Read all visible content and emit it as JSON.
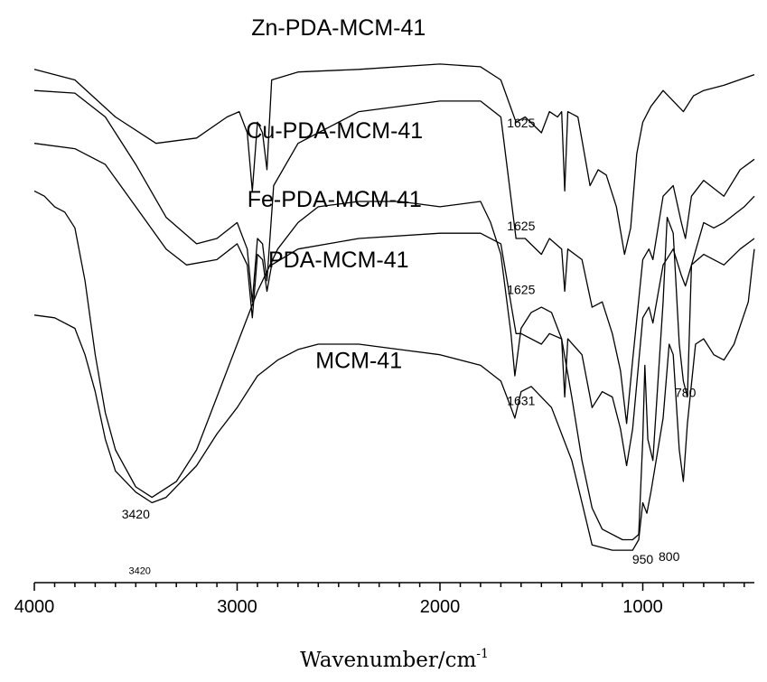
{
  "chart_data": {
    "type": "line",
    "title": "",
    "xlabel": "Wavenumber/cm",
    "xlabel_sup": "-1",
    "ylabel": "",
    "xlim": [
      4000,
      450
    ],
    "x_reversed": true,
    "x_ticks": [
      4000,
      3000,
      2000,
      1000
    ],
    "grid": false,
    "series": [
      {
        "name": "Zn-PDA-MCM-41",
        "points": [
          [
            4000,
            0.92
          ],
          [
            3800,
            0.9
          ],
          [
            3600,
            0.83
          ],
          [
            3400,
            0.78
          ],
          [
            3200,
            0.79
          ],
          [
            3050,
            0.83
          ],
          [
            2990,
            0.84
          ],
          [
            2950,
            0.8
          ],
          [
            2925,
            0.69
          ],
          [
            2900,
            0.82
          ],
          [
            2875,
            0.8
          ],
          [
            2853,
            0.73
          ],
          [
            2830,
            0.9
          ],
          [
            2700,
            0.915
          ],
          [
            2400,
            0.92
          ],
          [
            2000,
            0.93
          ],
          [
            1800,
            0.925
          ],
          [
            1700,
            0.9
          ],
          [
            1625,
            0.82
          ],
          [
            1580,
            0.83
          ],
          [
            1500,
            0.8
          ],
          [
            1460,
            0.84
          ],
          [
            1420,
            0.83
          ],
          [
            1400,
            0.84
          ],
          [
            1385,
            0.69
          ],
          [
            1370,
            0.84
          ],
          [
            1320,
            0.83
          ],
          [
            1260,
            0.7
          ],
          [
            1220,
            0.73
          ],
          [
            1180,
            0.72
          ],
          [
            1130,
            0.66
          ],
          [
            1090,
            0.57
          ],
          [
            1060,
            0.62
          ],
          [
            1030,
            0.76
          ],
          [
            1000,
            0.82
          ],
          [
            960,
            0.85
          ],
          [
            900,
            0.88
          ],
          [
            800,
            0.84
          ],
          [
            750,
            0.87
          ],
          [
            700,
            0.88
          ],
          [
            600,
            0.89
          ],
          [
            450,
            0.91
          ]
        ]
      },
      {
        "name": "Cu-PDA-MCM-41",
        "points": [
          [
            4000,
            0.88
          ],
          [
            3800,
            0.875
          ],
          [
            3650,
            0.83
          ],
          [
            3500,
            0.74
          ],
          [
            3350,
            0.64
          ],
          [
            3200,
            0.59
          ],
          [
            3100,
            0.6
          ],
          [
            3000,
            0.63
          ],
          [
            2950,
            0.58
          ],
          [
            2925,
            0.48
          ],
          [
            2900,
            0.6
          ],
          [
            2875,
            0.59
          ],
          [
            2853,
            0.52
          ],
          [
            2820,
            0.7
          ],
          [
            2700,
            0.78
          ],
          [
            2400,
            0.84
          ],
          [
            2000,
            0.86
          ],
          [
            1800,
            0.86
          ],
          [
            1700,
            0.83
          ],
          [
            1625,
            0.6
          ],
          [
            1580,
            0.6
          ],
          [
            1500,
            0.57
          ],
          [
            1460,
            0.6
          ],
          [
            1400,
            0.58
          ],
          [
            1385,
            0.5
          ],
          [
            1370,
            0.58
          ],
          [
            1300,
            0.56
          ],
          [
            1250,
            0.47
          ],
          [
            1200,
            0.48
          ],
          [
            1150,
            0.42
          ],
          [
            1110,
            0.35
          ],
          [
            1080,
            0.25
          ],
          [
            1050,
            0.37
          ],
          [
            1000,
            0.56
          ],
          [
            970,
            0.58
          ],
          [
            950,
            0.56
          ],
          [
            900,
            0.68
          ],
          [
            850,
            0.7
          ],
          [
            810,
            0.63
          ],
          [
            790,
            0.6
          ],
          [
            760,
            0.68
          ],
          [
            700,
            0.71
          ],
          [
            600,
            0.68
          ],
          [
            520,
            0.73
          ],
          [
            450,
            0.75
          ]
        ]
      },
      {
        "name": "Fe-PDA-MCM-41",
        "points": [
          [
            4000,
            0.78
          ],
          [
            3800,
            0.77
          ],
          [
            3650,
            0.74
          ],
          [
            3500,
            0.66
          ],
          [
            3350,
            0.58
          ],
          [
            3250,
            0.55
          ],
          [
            3100,
            0.56
          ],
          [
            3000,
            0.59
          ],
          [
            2950,
            0.55
          ],
          [
            2925,
            0.45
          ],
          [
            2900,
            0.57
          ],
          [
            2875,
            0.56
          ],
          [
            2853,
            0.5
          ],
          [
            2830,
            0.55
          ],
          [
            2700,
            0.58
          ],
          [
            2400,
            0.6
          ],
          [
            2000,
            0.61
          ],
          [
            1800,
            0.61
          ],
          [
            1700,
            0.59
          ],
          [
            1625,
            0.42
          ],
          [
            1600,
            0.42
          ],
          [
            1500,
            0.4
          ],
          [
            1460,
            0.42
          ],
          [
            1400,
            0.41
          ],
          [
            1385,
            0.3
          ],
          [
            1370,
            0.41
          ],
          [
            1300,
            0.38
          ],
          [
            1250,
            0.28
          ],
          [
            1200,
            0.31
          ],
          [
            1150,
            0.3
          ],
          [
            1110,
            0.24
          ],
          [
            1080,
            0.17
          ],
          [
            1050,
            0.24
          ],
          [
            1000,
            0.45
          ],
          [
            970,
            0.47
          ],
          [
            950,
            0.44
          ],
          [
            900,
            0.55
          ],
          [
            850,
            0.58
          ],
          [
            810,
            0.53
          ],
          [
            790,
            0.51
          ],
          [
            760,
            0.55
          ],
          [
            700,
            0.57
          ],
          [
            600,
            0.55
          ],
          [
            520,
            0.58
          ],
          [
            450,
            0.6
          ]
        ]
      },
      {
        "name": "PDA-MCM-41",
        "points": [
          [
            4000,
            0.69
          ],
          [
            3950,
            0.68
          ],
          [
            3900,
            0.66
          ],
          [
            3850,
            0.65
          ],
          [
            3800,
            0.62
          ],
          [
            3750,
            0.52
          ],
          [
            3700,
            0.38
          ],
          [
            3650,
            0.27
          ],
          [
            3600,
            0.2
          ],
          [
            3500,
            0.13
          ],
          [
            3420,
            0.11
          ],
          [
            3300,
            0.14
          ],
          [
            3200,
            0.2
          ],
          [
            3100,
            0.3
          ],
          [
            3000,
            0.4
          ],
          [
            2900,
            0.5
          ],
          [
            2800,
            0.58
          ],
          [
            2700,
            0.63
          ],
          [
            2600,
            0.66
          ],
          [
            2400,
            0.67
          ],
          [
            2200,
            0.67
          ],
          [
            2000,
            0.66
          ],
          [
            1800,
            0.67
          ],
          [
            1750,
            0.63
          ],
          [
            1700,
            0.57
          ],
          [
            1650,
            0.42
          ],
          [
            1631,
            0.34
          ],
          [
            1600,
            0.43
          ],
          [
            1550,
            0.46
          ],
          [
            1500,
            0.47
          ],
          [
            1450,
            0.46
          ],
          [
            1400,
            0.41
          ],
          [
            1350,
            0.3
          ],
          [
            1300,
            0.18
          ],
          [
            1250,
            0.09
          ],
          [
            1200,
            0.05
          ],
          [
            1100,
            0.03
          ],
          [
            1050,
            0.03
          ],
          [
            1020,
            0.04
          ],
          [
            1000,
            0.22
          ],
          [
            990,
            0.36
          ],
          [
            975,
            0.22
          ],
          [
            950,
            0.18
          ],
          [
            900,
            0.48
          ],
          [
            880,
            0.64
          ],
          [
            850,
            0.61
          ],
          [
            820,
            0.4
          ],
          [
            800,
            0.33
          ],
          [
            780,
            0.3
          ],
          [
            760,
            0.55
          ],
          [
            700,
            0.63
          ],
          [
            650,
            0.62
          ],
          [
            600,
            0.63
          ],
          [
            500,
            0.66
          ],
          [
            450,
            0.68
          ]
        ]
      },
      {
        "name": "MCM-41",
        "points": [
          [
            4000,
            0.455
          ],
          [
            3900,
            0.45
          ],
          [
            3800,
            0.43
          ],
          [
            3750,
            0.38
          ],
          [
            3700,
            0.31
          ],
          [
            3650,
            0.22
          ],
          [
            3600,
            0.16
          ],
          [
            3500,
            0.12
          ],
          [
            3420,
            0.1
          ],
          [
            3350,
            0.11
          ],
          [
            3200,
            0.17
          ],
          [
            3100,
            0.23
          ],
          [
            3000,
            0.28
          ],
          [
            2900,
            0.34
          ],
          [
            2800,
            0.37
          ],
          [
            2700,
            0.39
          ],
          [
            2600,
            0.4
          ],
          [
            2400,
            0.4
          ],
          [
            2200,
            0.39
          ],
          [
            2000,
            0.38
          ],
          [
            1800,
            0.36
          ],
          [
            1700,
            0.33
          ],
          [
            1650,
            0.28
          ],
          [
            1631,
            0.26
          ],
          [
            1600,
            0.31
          ],
          [
            1550,
            0.32
          ],
          [
            1450,
            0.28
          ],
          [
            1350,
            0.18
          ],
          [
            1300,
            0.1
          ],
          [
            1250,
            0.02
          ],
          [
            1150,
            0.01
          ],
          [
            1050,
            0.01
          ],
          [
            1020,
            0.03
          ],
          [
            1000,
            0.1
          ],
          [
            980,
            0.08
          ],
          [
            960,
            0.12
          ],
          [
            900,
            0.26
          ],
          [
            870,
            0.4
          ],
          [
            850,
            0.38
          ],
          [
            820,
            0.2
          ],
          [
            800,
            0.14
          ],
          [
            780,
            0.25
          ],
          [
            740,
            0.4
          ],
          [
            700,
            0.41
          ],
          [
            650,
            0.38
          ],
          [
            600,
            0.37
          ],
          [
            550,
            0.4
          ],
          [
            480,
            0.48
          ],
          [
            460,
            0.55
          ],
          [
            450,
            0.58
          ]
        ]
      }
    ],
    "series_labels": [
      {
        "text": "Zn-PDA-MCM-41",
        "x": 2500,
        "y": 0.985
      },
      {
        "text": "Cu-PDA-MCM-41",
        "x": 2520,
        "y": 0.79
      },
      {
        "text": "Fe-PDA-MCM-41",
        "x": 2520,
        "y": 0.66
      },
      {
        "text": "PDA-MCM-41",
        "x": 2500,
        "y": 0.545
      },
      {
        "text": "MCM-41",
        "x": 2400,
        "y": 0.355
      }
    ],
    "annotations": [
      {
        "text": "1625",
        "x": 1600,
        "y": 0.81,
        "size": "normal"
      },
      {
        "text": "1625",
        "x": 1600,
        "y": 0.615,
        "size": "normal"
      },
      {
        "text": "1625",
        "x": 1600,
        "y": 0.495,
        "size": "normal"
      },
      {
        "text": "1631",
        "x": 1600,
        "y": 0.285,
        "size": "normal"
      },
      {
        "text": "780",
        "x": 790,
        "y": 0.3,
        "size": "normal"
      },
      {
        "text": "3420",
        "x": 3500,
        "y": 0.07,
        "size": "normal"
      },
      {
        "text": "3420",
        "x": 3480,
        "y": -0.035,
        "size": "small"
      },
      {
        "text": "950",
        "x": 1000,
        "y": -0.015,
        "size": "normal"
      },
      {
        "text": "800",
        "x": 870,
        "y": -0.01,
        "size": "normal"
      }
    ]
  }
}
